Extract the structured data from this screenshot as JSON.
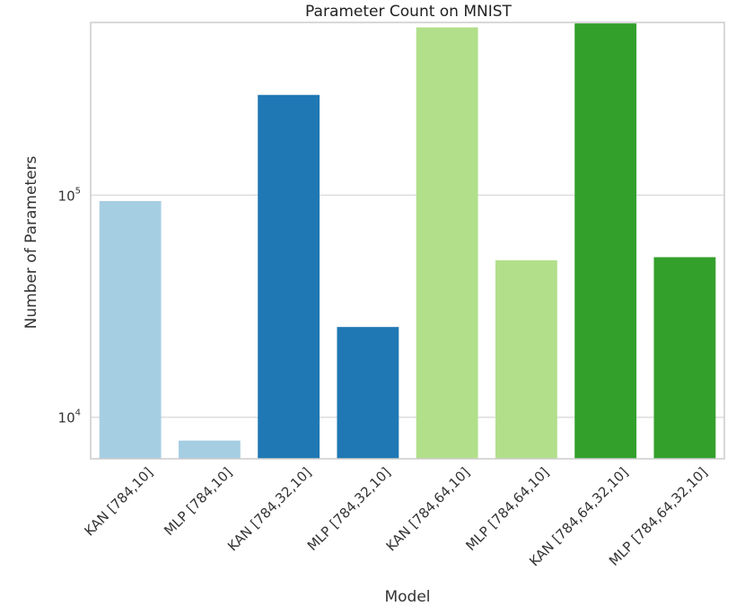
{
  "chart_data": {
    "type": "bar",
    "title": "Parameter Count on MNIST",
    "xlabel": "Model",
    "ylabel": "Number of Parameters",
    "yscale": "log",
    "ylim": [
      6500,
      600000
    ],
    "yticks": [
      {
        "value": 10000,
        "base": "10",
        "exp": "4"
      },
      {
        "value": 100000,
        "base": "10",
        "exp": "5"
      }
    ],
    "grid": "horizontal",
    "categories": [
      "KAN [784,10]",
      "MLP [784,10]",
      "KAN [784,32,10]",
      "MLP [784,32,10]",
      "KAN [784,64,10]",
      "MLP [784,64,10]",
      "KAN [784,64,32,10]",
      "MLP [784,64,32,10]"
    ],
    "values": [
      94100,
      7850,
      283000,
      25500,
      570000,
      50900,
      594000,
      52600
    ],
    "colors": [
      "#a6cee3",
      "#a6cee3",
      "#1f78b4",
      "#1f78b4",
      "#b2df8a",
      "#b2df8a",
      "#33a02c",
      "#33a02c"
    ]
  }
}
